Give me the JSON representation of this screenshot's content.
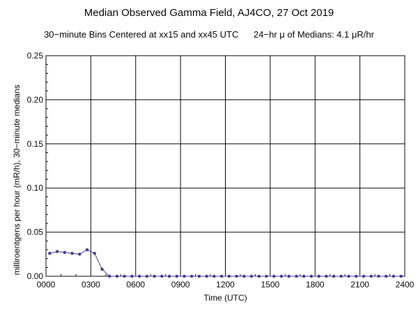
{
  "chart_data": {
    "type": "line",
    "title": "Median Observed Gamma Field, AJ4CO, 27 Oct 2019",
    "subtitle_left": "30−minute Bins Centered at xx15 and xx45 UTC",
    "subtitle_right": "24−hr μ of Medians: 4.1 μR/hr",
    "xlabel": "Time (UTC)",
    "ylabel": "milliroentgens per hour (mR/h), 30−minute medians",
    "x_ticks": [
      "0000",
      "0300",
      "0600",
      "0900",
      "1200",
      "1500",
      "1800",
      "2100",
      "2400"
    ],
    "y_ticks": [
      "0.00",
      "0.05",
      "0.10",
      "0.15",
      "0.20",
      "0.25"
    ],
    "xlim": [
      0,
      24
    ],
    "ylim": [
      0,
      0.25
    ],
    "grid": true,
    "series": [
      {
        "color": "#3b3b8f",
        "x": [
          0.25,
          0.75,
          1.25,
          1.75,
          2.25,
          2.75,
          3.25,
          3.75,
          4.25,
          4.75,
          5.25,
          5.75,
          6.25,
          6.75,
          7.25,
          7.75,
          8.25,
          8.75,
          9.25,
          9.75,
          10.25,
          10.75,
          11.25,
          11.75,
          12.25,
          12.75,
          13.25,
          13.75,
          14.25,
          14.75,
          15.25,
          15.75,
          16.25,
          16.75,
          17.25,
          17.75,
          18.25,
          18.75,
          19.25,
          19.75,
          20.25,
          20.75,
          21.25,
          21.75,
          22.25,
          22.75,
          23.25,
          23.75
        ],
        "y": [
          0.026,
          0.028,
          0.027,
          0.026,
          0.025,
          0.03,
          0.026,
          0.008,
          0.0,
          0.0,
          0.0,
          0.0,
          0.0,
          0.0,
          0.0,
          0.0,
          0.0,
          0.0,
          0.0,
          0.0,
          0.0,
          0.0,
          0.0,
          0.0,
          0.0,
          0.0,
          0.0,
          0.0,
          0.0,
          0.0,
          0.0,
          0.0,
          0.0,
          0.0,
          0.0,
          0.0,
          0.0,
          0.0,
          0.0,
          0.0,
          0.0,
          0.0,
          0.0,
          0.0,
          0.0,
          0.0,
          0.0,
          0.0
        ]
      }
    ]
  }
}
